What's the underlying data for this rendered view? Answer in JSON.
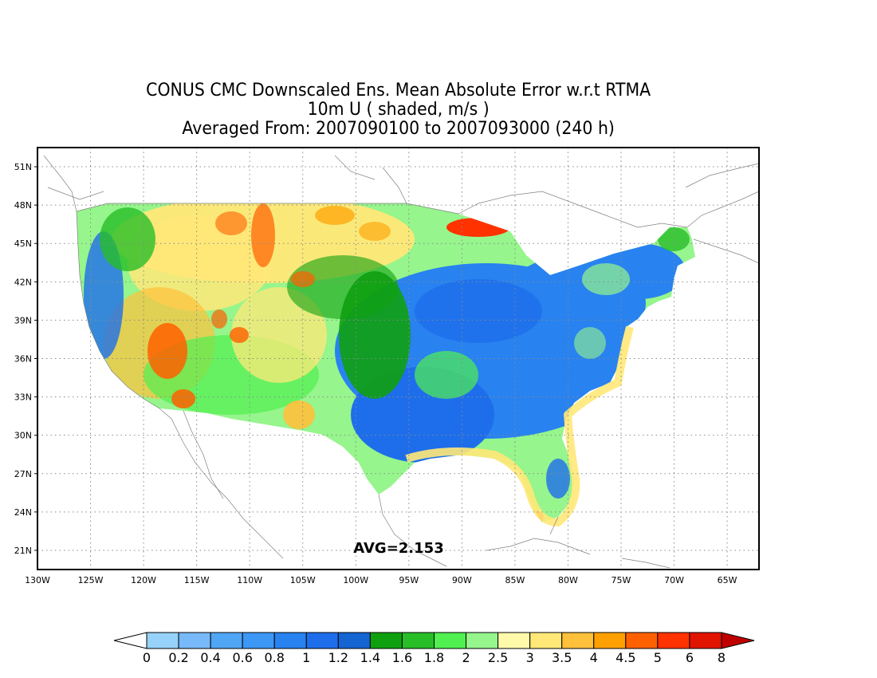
{
  "title": {
    "line1": "CONUS CMC Downscaled Ens. Mean Absolute Error w.r.t RTMA",
    "line2": "10m U ( shaded, m/s )",
    "line3": "Averaged From: 2007090100 to 2007093000 (240 h)"
  },
  "annotation": "AVG=2.153",
  "axes": {
    "lon_ticks": [
      "130W",
      "125W",
      "120W",
      "115W",
      "110W",
      "105W",
      "100W",
      "95W",
      "90W",
      "85W",
      "80W",
      "75W",
      "70W",
      "65W"
    ],
    "lat_ticks": [
      "51N",
      "48N",
      "45N",
      "42N",
      "39N",
      "36N",
      "33N",
      "30N",
      "27N",
      "24N",
      "21N"
    ],
    "lon_range": [
      -130,
      -62
    ],
    "lat_range": [
      19.5,
      52.5
    ],
    "grid": "dotted"
  },
  "colorbar": {
    "labels": [
      "0",
      "0.2",
      "0.4",
      "0.6",
      "0.8",
      "1",
      "1.2",
      "1.4",
      "1.6",
      "1.8",
      "2",
      "2.5",
      "3",
      "3.5",
      "4",
      "4.5",
      "5",
      "6",
      "8"
    ],
    "colors": [
      "#ffffff",
      "#96d2fa",
      "#78b9fa",
      "#50a5f5",
      "#3c97f5",
      "#2882f0",
      "#1e6eeb",
      "#1464d2",
      "#0fa00f",
      "#28be28",
      "#50f050",
      "#96f58c",
      "#fffaaa",
      "#ffe878",
      "#ffc03c",
      "#ffa000",
      "#ff6000",
      "#ff3200",
      "#e11400",
      "#c00000"
    ]
  }
}
